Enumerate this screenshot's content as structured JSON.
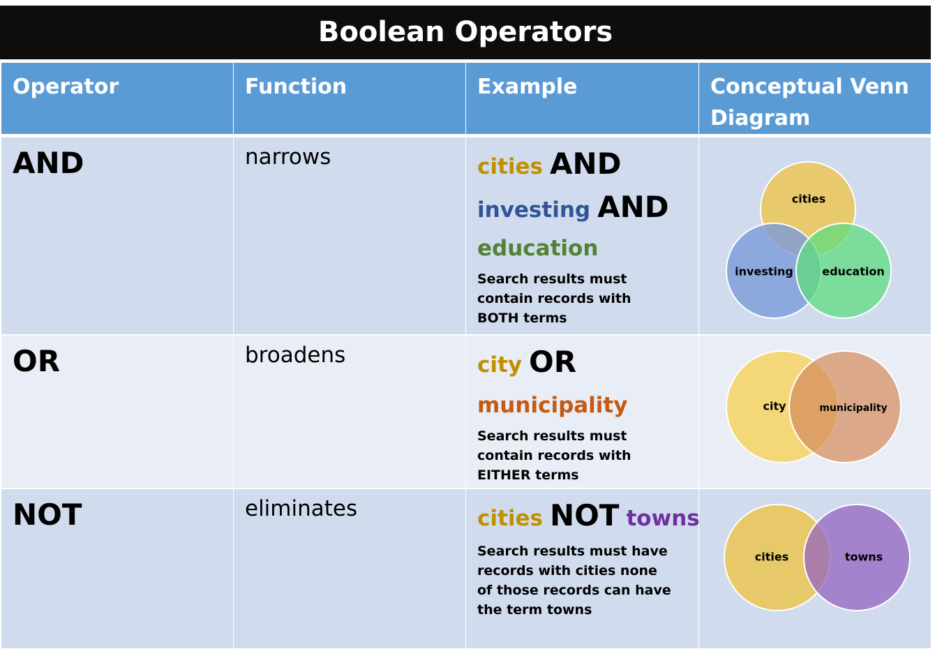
{
  "title": "Boolean Operators",
  "table": {
    "headers": [
      "Operator",
      "Function",
      "Example",
      "Conceptual Venn Diagram"
    ],
    "rows": [
      {
        "operator": "AND",
        "function": "narrows",
        "example": {
          "lines": [
            [
              {
                "text": "cities",
                "color": "#bf9000"
              },
              {
                "text": "AND",
                "color": "#000000"
              }
            ],
            [
              {
                "text": "investing",
                "color": "#2f5597"
              },
              {
                "text": "AND",
                "color": "#000000"
              }
            ],
            [
              {
                "text": "education",
                "color": "#538135"
              }
            ]
          ],
          "description": "Search results must contain records with BOTH terms"
        },
        "venn": [
          "cities",
          "investing",
          "education"
        ]
      },
      {
        "operator": "OR",
        "function": "broadens",
        "example": {
          "lines": [
            [
              {
                "text": "city",
                "color": "#bf9000"
              },
              {
                "text": "OR",
                "color": "#000000"
              }
            ],
            [
              {
                "text": "municipality",
                "color": "#c55a11"
              }
            ]
          ],
          "description": "Search results must contain records with EITHER terms"
        },
        "venn": [
          "city",
          "municipality"
        ]
      },
      {
        "operator": "NOT",
        "function": "eliminates",
        "example": {
          "lines": [
            [
              {
                "text": "cities",
                "color": "#bf9000"
              },
              {
                "text": "NOT",
                "color": "#000000"
              },
              {
                "text": "towns",
                "color": "#7030a0"
              }
            ]
          ],
          "description": "Search results must have records with cities none of those records can have the term towns"
        },
        "venn": [
          "cities",
          "towns"
        ]
      }
    ]
  }
}
